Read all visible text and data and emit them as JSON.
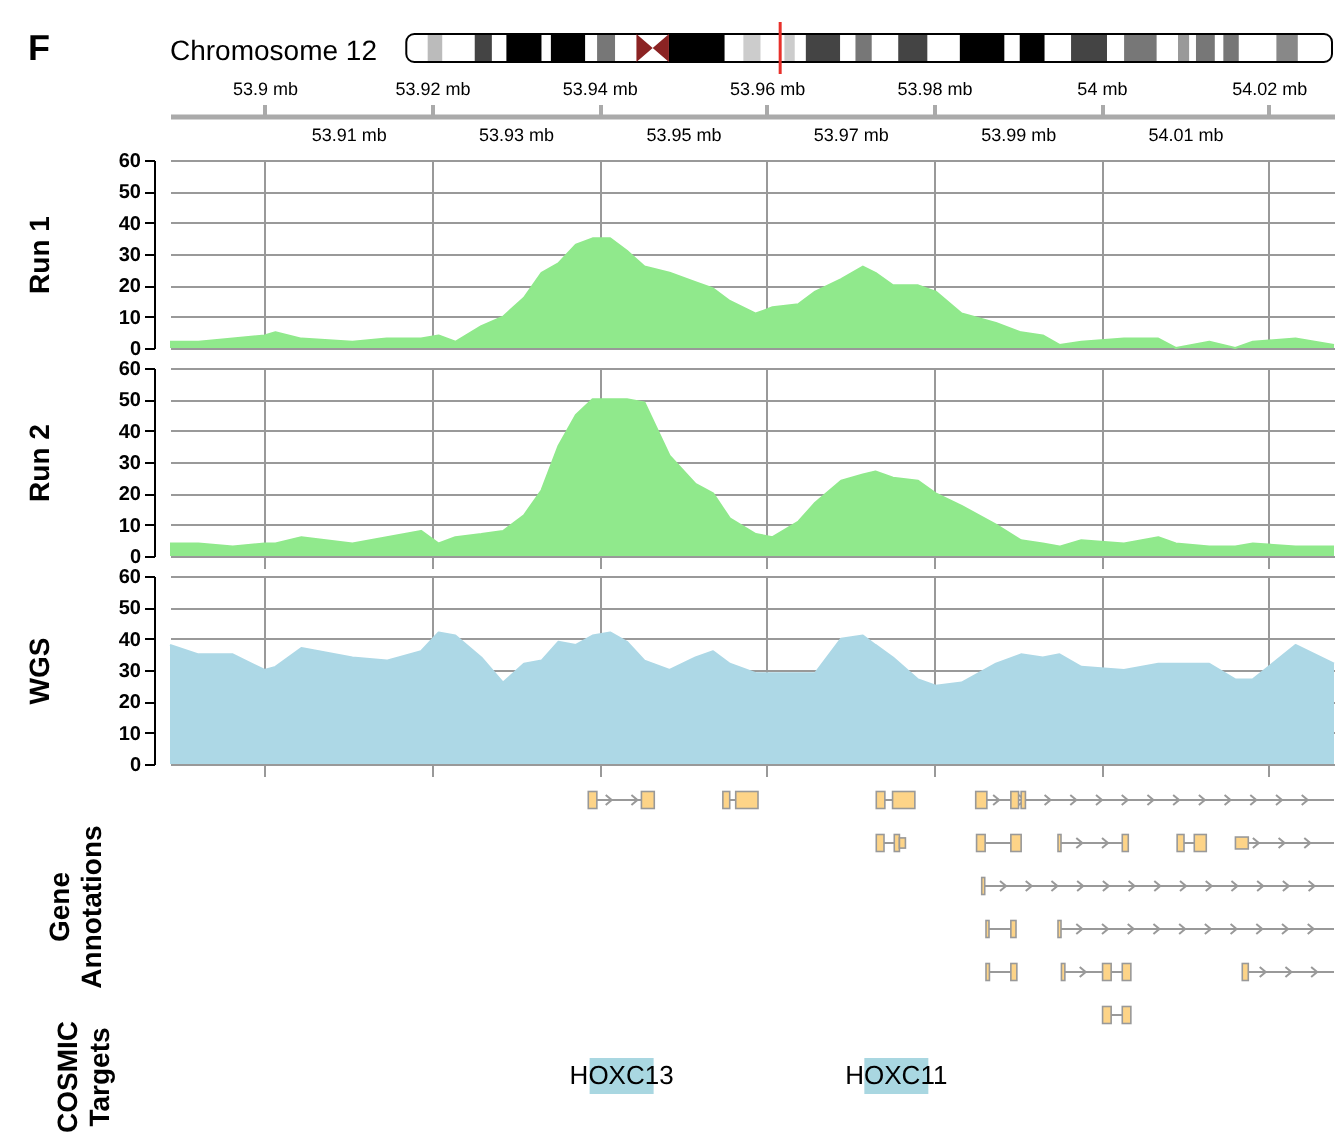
{
  "chart_data": [
    {
      "type": "area",
      "title": "Chromosome 12",
      "annotations": [
        "F"
      ],
      "ylabel": "Run 1",
      "grid": true,
      "xlim": [
        53.8887,
        54.0278
      ],
      "xticks": [
        {
          "value": 53.9,
          "label": "53.9 mb"
        },
        {
          "value": 53.92,
          "label": "53.92 mb"
        },
        {
          "value": 53.94,
          "label": "53.94 mb"
        },
        {
          "value": 53.96,
          "label": "53.96 mb"
        },
        {
          "value": 53.98,
          "label": "53.98 mb"
        },
        {
          "value": 54,
          "label": "54 mb"
        },
        {
          "value": 54.02,
          "label": "54.02 mb"
        }
      ],
      "x2lim": [
        53.8887,
        54.0278
      ],
      "x2ticks": [
        {
          "value": 53.91,
          "label": "53.91 mb"
        },
        {
          "value": 53.93,
          "label": "53.93 mb"
        },
        {
          "value": 53.95,
          "label": "53.95 mb"
        },
        {
          "value": 53.97,
          "label": "53.97 mb"
        },
        {
          "value": 53.99,
          "label": "53.99 mb"
        },
        {
          "value": 54.01,
          "label": "54.01 mb"
        }
      ],
      "ylim": [
        0,
        60
      ],
      "yticks": [
        0,
        10,
        20,
        30,
        40,
        50,
        60
      ],
      "x": [
        53.8887,
        53.8921,
        53.8962,
        53.9,
        53.9013,
        53.9044,
        53.9105,
        53.9146,
        53.9187,
        53.9208,
        53.9228,
        53.9259,
        53.9285,
        53.931,
        53.9331,
        53.9351,
        53.9372,
        53.9392,
        53.9413,
        53.9433,
        53.9454,
        53.9484,
        53.9515,
        53.9536,
        53.9556,
        53.9587,
        53.9607,
        53.9638,
        53.9658,
        53.9689,
        53.9715,
        53.973,
        53.9751,
        53.9781,
        53.9802,
        53.9833,
        53.9874,
        53.9904,
        53.993,
        53.995,
        53.9976,
        54.0027,
        54.0068,
        54.0089,
        54.0129,
        54.016,
        54.0181,
        54.0232,
        54.0278
      ],
      "series": [
        {
          "color": "#90e98c",
          "values": [
            2,
            2,
            3,
            4,
            5,
            3,
            2,
            3,
            3,
            4,
            2,
            7,
            10,
            16,
            24,
            27,
            33,
            35,
            35,
            31,
            26,
            24,
            21,
            19,
            15,
            11,
            13,
            14,
            18,
            22,
            26,
            24,
            20,
            20,
            18,
            11,
            8,
            5,
            4,
            1,
            2,
            3,
            3,
            0,
            2,
            0,
            2,
            3,
            1
          ]
        }
      ]
    },
    {
      "type": "area",
      "ylabel": "Run 2",
      "grid": true,
      "tick_labels": "y",
      "xlim": [
        53.8887,
        54.0278
      ],
      "xticks": [
        {
          "value": 53.9,
          "label": null
        },
        {
          "value": 53.92,
          "label": null
        },
        {
          "value": 53.94,
          "label": null
        },
        {
          "value": 53.96,
          "label": null
        },
        {
          "value": 53.98,
          "label": null
        },
        {
          "value": 54,
          "label": null
        },
        {
          "value": 54.02,
          "label": null
        }
      ],
      "ylim": [
        0,
        60
      ],
      "yticks": [
        0,
        10,
        20,
        30,
        40,
        50,
        60
      ],
      "x": [
        53.8887,
        53.8921,
        53.8962,
        53.9,
        53.9013,
        53.9044,
        53.9105,
        53.9146,
        53.9187,
        53.9208,
        53.9228,
        53.9259,
        53.9285,
        53.931,
        53.9331,
        53.9351,
        53.9372,
        53.9392,
        53.9413,
        53.9433,
        53.9454,
        53.9484,
        53.9515,
        53.9536,
        53.9556,
        53.9587,
        53.9607,
        53.9638,
        53.9658,
        53.9689,
        53.9715,
        53.973,
        53.9751,
        53.9781,
        53.9802,
        53.9833,
        53.9874,
        53.9904,
        53.993,
        53.995,
        53.9976,
        54.0027,
        54.0068,
        54.0089,
        54.0129,
        54.016,
        54.0181,
        54.0232,
        54.0278
      ],
      "series": [
        {
          "color": "#90e98c",
          "values": [
            4,
            4,
            3,
            4,
            4,
            6,
            4,
            6,
            8,
            4,
            6,
            7,
            8,
            13,
            21,
            35,
            45,
            50,
            50,
            50,
            49,
            32,
            23,
            20,
            12,
            7,
            6,
            11,
            17,
            24,
            26,
            27,
            25,
            24,
            20,
            16,
            10,
            5,
            4,
            3,
            5,
            4,
            6,
            4,
            3,
            3,
            4,
            3,
            3
          ]
        }
      ]
    },
    {
      "type": "area",
      "ylabel": "WGS",
      "grid": true,
      "tick_labels": "y",
      "xlim": [
        53.8887,
        54.0278
      ],
      "xticks": [
        {
          "value": 53.9,
          "label": null
        },
        {
          "value": 53.92,
          "label": null
        },
        {
          "value": 53.94,
          "label": null
        },
        {
          "value": 53.96,
          "label": null
        },
        {
          "value": 53.98,
          "label": null
        },
        {
          "value": 54,
          "label": null
        },
        {
          "value": 54.02,
          "label": null
        }
      ],
      "ylim": [
        0,
        60
      ],
      "yticks": [
        0,
        10,
        20,
        30,
        40,
        50,
        60
      ],
      "x": [
        53.8887,
        53.8921,
        53.8962,
        53.9,
        53.9013,
        53.9044,
        53.9105,
        53.9146,
        53.9187,
        53.9208,
        53.9228,
        53.9259,
        53.9285,
        53.931,
        53.9331,
        53.9351,
        53.9372,
        53.9392,
        53.9413,
        53.9433,
        53.9454,
        53.9484,
        53.9515,
        53.9536,
        53.9556,
        53.9587,
        53.9607,
        53.9638,
        53.9658,
        53.9689,
        53.9715,
        53.973,
        53.9751,
        53.9781,
        53.9802,
        53.9833,
        53.9874,
        53.9904,
        53.993,
        53.995,
        53.9976,
        54.0027,
        54.0068,
        54.0089,
        54.0129,
        54.016,
        54.0181,
        54.0232,
        54.0278
      ],
      "series": [
        {
          "color": "#add8e6",
          "values": [
            38,
            35,
            35,
            30,
            31,
            37,
            34,
            33,
            36,
            42,
            41,
            34,
            26,
            32,
            33,
            39,
            38,
            41,
            42,
            39,
            33,
            30,
            34,
            36,
            32,
            29,
            29,
            29,
            29,
            40,
            41,
            38,
            34,
            27,
            25,
            26,
            32,
            35,
            34,
            35,
            31,
            30,
            32,
            32,
            32,
            27,
            27,
            38,
            32
          ]
        }
      ]
    },
    {
      "type": "other",
      "ylabel": "Gene Annotations"
    },
    {
      "type": "other",
      "ylabel": "COSMIC Targets",
      "annotations": [
        "HOXC13",
        "HOXC11"
      ]
    }
  ]
}
